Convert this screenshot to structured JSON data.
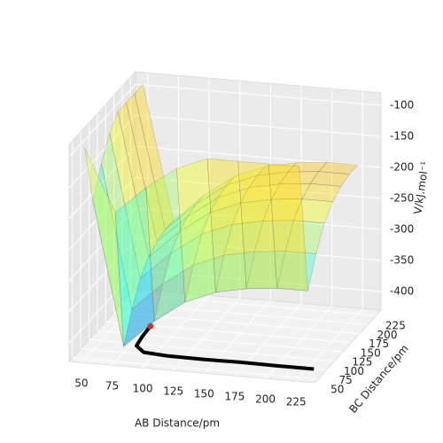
{
  "chart_data": {
    "type": "surface3d",
    "xlabel": "AB Distance/pm",
    "ylabel": "BC Distance/pm",
    "zlabel": "V/kJ.mol⁻¹",
    "xlim": [
      40,
      240
    ],
    "ylim": [
      40,
      240
    ],
    "zlim": [
      -430,
      -80
    ],
    "xticks": [
      50,
      75,
      100,
      125,
      150,
      175,
      200,
      225
    ],
    "yticks": [
      50,
      75,
      100,
      125,
      150,
      175,
      200,
      225
    ],
    "zticks": [
      -100,
      -150,
      -200,
      -250,
      -300,
      -350,
      -400
    ],
    "colormap": "jet",
    "x": [
      50,
      75,
      100,
      125,
      150,
      175,
      200,
      225
    ],
    "y": [
      50,
      75,
      100,
      125,
      150,
      175,
      200,
      225
    ],
    "z": [
      [
        -90,
        -190,
        -145,
        -110,
        -90,
        -90,
        -90,
        -90
      ],
      [
        -190,
        -420,
        -375,
        -340,
        -320,
        -310,
        -305,
        -305
      ],
      [
        -145,
        -375,
        -330,
        -295,
        -275,
        -265,
        -260,
        -260
      ],
      [
        -110,
        -340,
        -295,
        -260,
        -240,
        -230,
        -225,
        -225
      ],
      [
        -90,
        -320,
        -275,
        -240,
        -220,
        -210,
        -205,
        -205
      ],
      [
        -90,
        -310,
        -265,
        -230,
        -210,
        -200,
        -195,
        -195
      ],
      [
        -90,
        -305,
        -260,
        -225,
        -205,
        -195,
        -190,
        -190
      ],
      [
        -90,
        -305,
        -260,
        -225,
        -205,
        -195,
        -190,
        -190
      ]
    ],
    "trajectory": {
      "color": "#000000",
      "start_color": "#ff2020",
      "x": [
        77,
        78,
        80,
        90,
        110,
        140,
        170,
        200,
        230
      ],
      "y": [
        148,
        120,
        95,
        80,
        76,
        75,
        76,
        75,
        75
      ]
    }
  }
}
